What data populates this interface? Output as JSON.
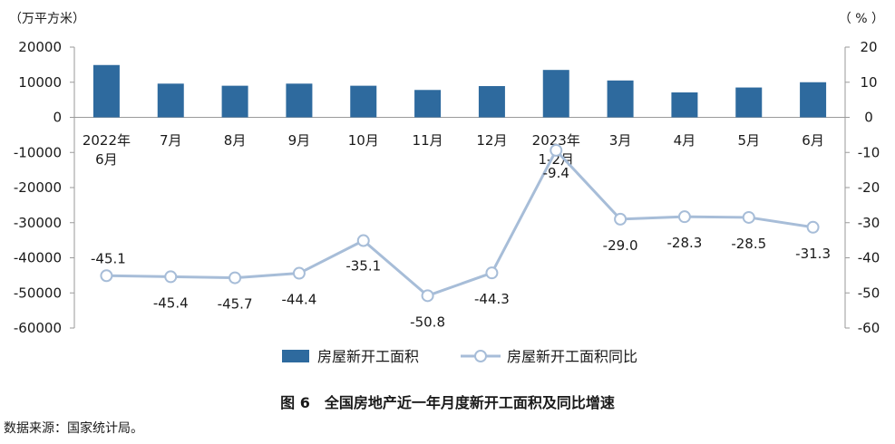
{
  "chart_data": {
    "type": "bar+line",
    "title": "图 6　全国房地产近一年月度新开工面积及同比增速",
    "left_unit": "（万平方米）",
    "right_unit": "（ % ）",
    "categories": [
      "2022年 6月",
      "7月",
      "8月",
      "9月",
      "10月",
      "11月",
      "12月",
      "2023年 1-2月",
      "3月",
      "4月",
      "5月",
      "6月"
    ],
    "category_lines": [
      [
        "2022年",
        "6月"
      ],
      [
        "7月"
      ],
      [
        "8月"
      ],
      [
        "9月"
      ],
      [
        "10月"
      ],
      [
        "11月"
      ],
      [
        "12月"
      ],
      [
        "2023年",
        "1-2月"
      ],
      [
        "3月"
      ],
      [
        "4月"
      ],
      [
        "5月"
      ],
      [
        "6月"
      ]
    ],
    "series": [
      {
        "name": "房屋新开工面积",
        "type": "bar",
        "axis": "left",
        "color": "#2e6a9e",
        "values": [
          14900,
          9600,
          9000,
          9600,
          9000,
          7800,
          8900,
          13500,
          10500,
          7100,
          8500,
          10000
        ]
      },
      {
        "name": "房屋新开工面积同比",
        "type": "line",
        "axis": "right",
        "color": "#a7bdd8",
        "values": [
          -45.1,
          -45.4,
          -45.7,
          -44.4,
          -35.1,
          -50.8,
          -44.3,
          -9.4,
          -29.0,
          -28.3,
          -28.5,
          -31.3
        ],
        "labels": [
          "-45.1",
          "-45.4",
          "-45.7",
          "-44.4",
          "-35.1",
          "-50.8",
          "-44.3",
          "-9.4",
          "-29.0",
          "-28.3",
          "-28.5",
          "-31.3"
        ]
      }
    ],
    "left_axis": {
      "min": -60000,
      "max": 20000,
      "ticks": [
        "20000",
        "10000",
        "0",
        "-10000",
        "-20000",
        "-30000",
        "-40000",
        "-50000",
        "-60000"
      ]
    },
    "right_axis": {
      "min": -60,
      "max": 20,
      "ticks": [
        "20",
        "10",
        "0",
        "-10",
        "-20",
        "-30",
        "-40",
        "-50",
        "-60"
      ]
    },
    "legend": {
      "position": "bottom",
      "items": [
        "房屋新开工面积",
        "房屋新开工面积同比"
      ]
    }
  },
  "source_note": "数据来源：国家统计局。"
}
